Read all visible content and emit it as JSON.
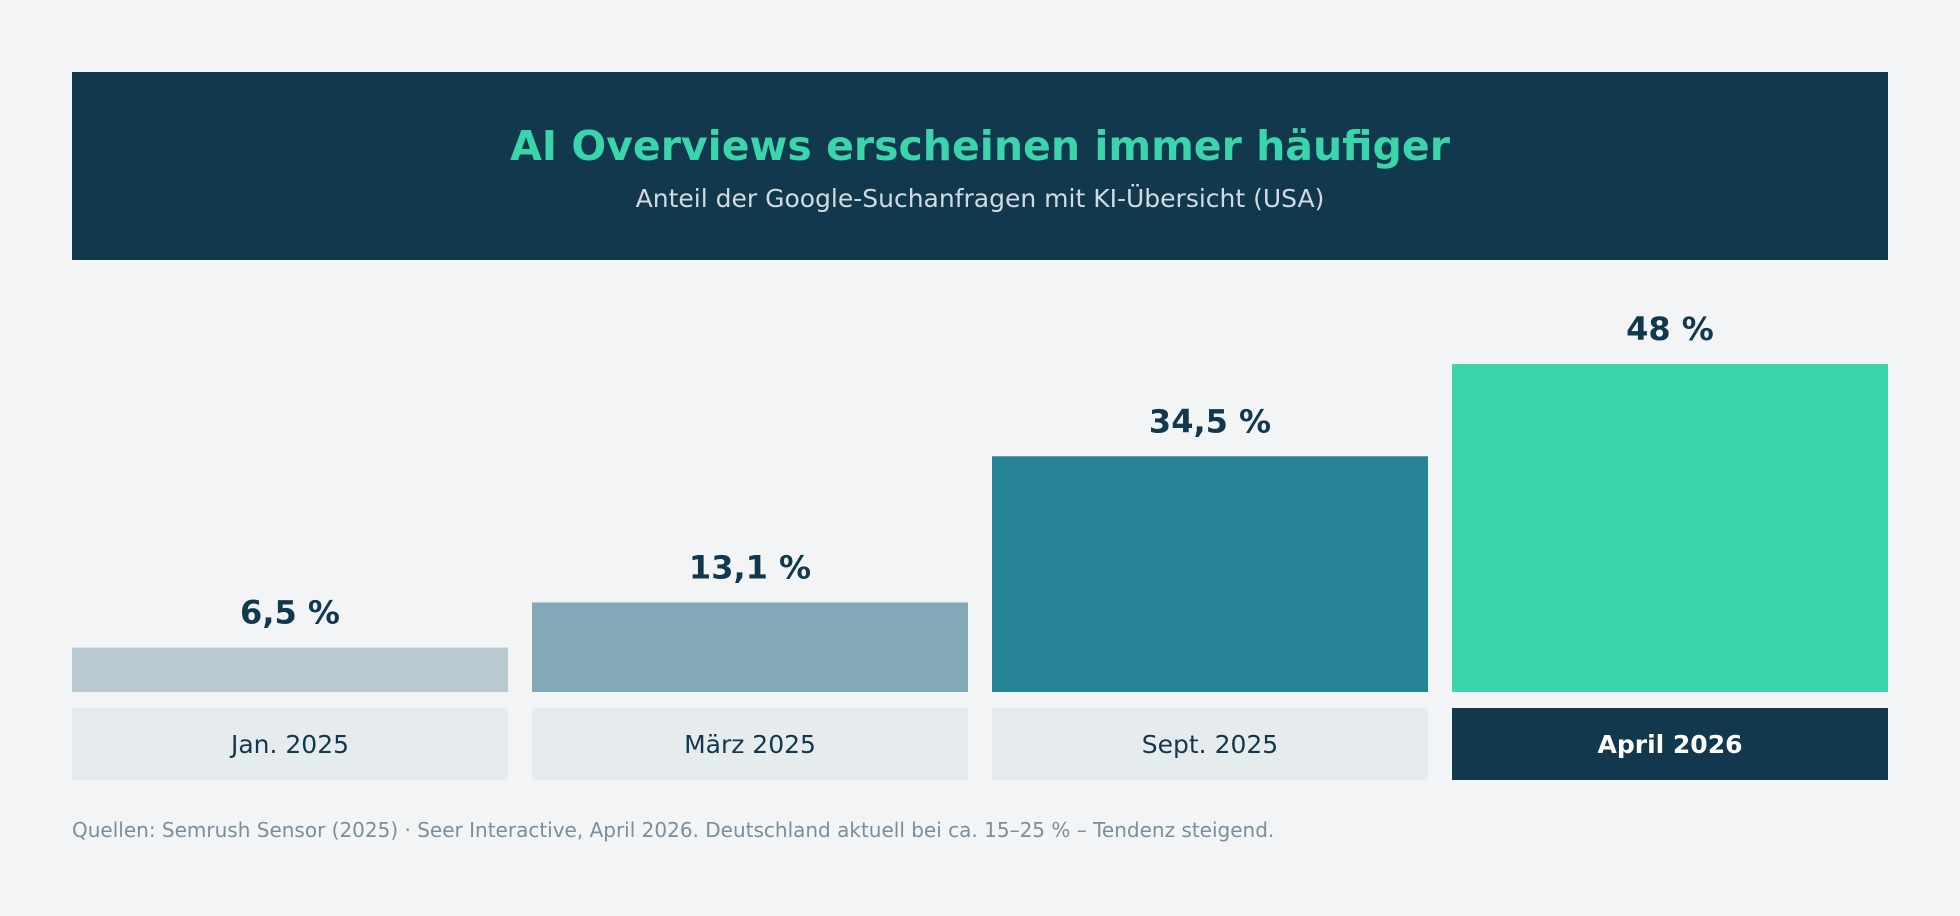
{
  "header": {
    "title": "AI Overviews erscheinen immer häufiger",
    "subtitle": "Anteil der Google-Suchanfragen mit KI-Übersicht (USA)"
  },
  "chart_data": {
    "type": "bar",
    "title": "AI Overviews erscheinen immer häufiger",
    "subtitle": "Anteil der Google-Suchanfragen mit KI-Übersicht (USA)",
    "categories": [
      "Jan. 2025",
      "März 2025",
      "Sept. 2025",
      "April 2026"
    ],
    "values": [
      6.5,
      13.1,
      34.5,
      48
    ],
    "value_labels": [
      "6,5 %",
      "13,1 %",
      "34,5 %",
      "48 %"
    ],
    "bar_colors": [
      "#b8c9d2",
      "#83a8b8",
      "#268396",
      "#3ad5ab"
    ],
    "label_backgrounds": [
      "#e6eced",
      "#e6eced",
      "#e6eced",
      "#12384d"
    ],
    "label_text_colors": [
      "#12384d",
      "#12384d",
      "#12384d",
      "#ffffff"
    ],
    "highlight_index": 3,
    "ylim": [
      0,
      48
    ],
    "grid": false,
    "legend": "none",
    "xlabel": "",
    "ylabel": ""
  },
  "footer": {
    "source": "Quellen: Semrush Sensor (2025) · Seer Interactive, April 2026. Deutschland aktuell bei ca. 15–25 % – Tendenz steigend."
  },
  "colors": {
    "background": "#f2f4f6",
    "header_bg": "#12384d",
    "accent": "#3ad5ab",
    "text_dark": "#12384d"
  }
}
